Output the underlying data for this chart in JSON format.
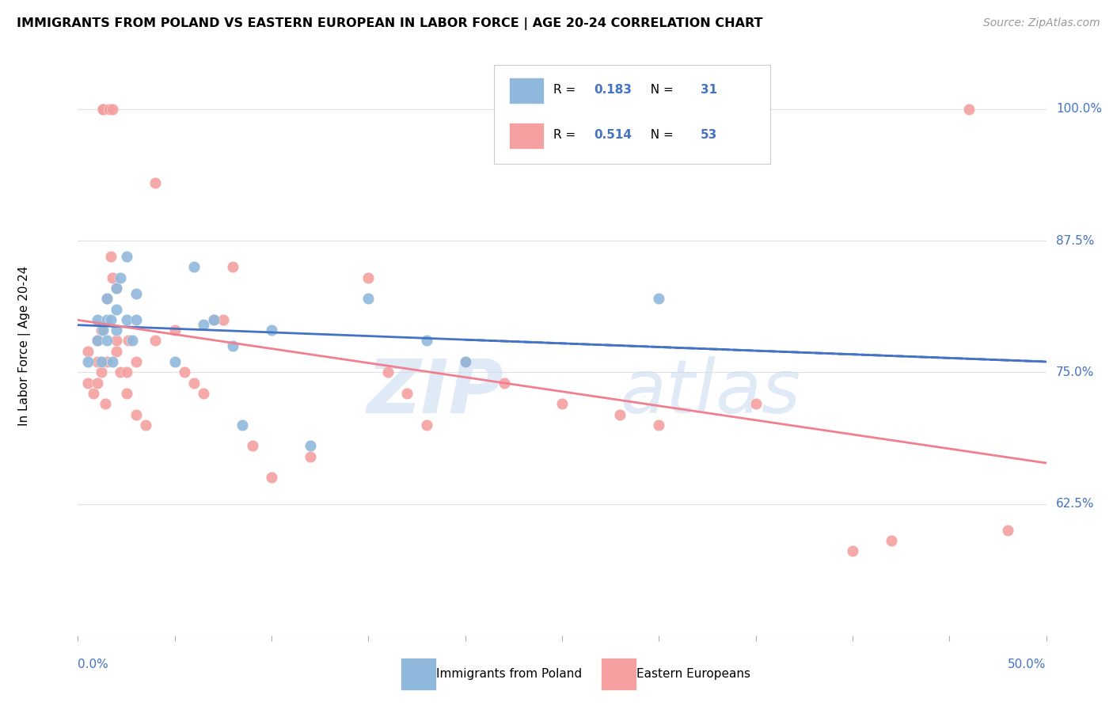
{
  "title": "IMMIGRANTS FROM POLAND VS EASTERN EUROPEAN IN LABOR FORCE | AGE 20-24 CORRELATION CHART",
  "source": "Source: ZipAtlas.com",
  "xmin": 0.0,
  "xmax": 0.5,
  "ymin": 0.5,
  "ymax": 1.05,
  "ylabel": "In Labor Force | Age 20-24",
  "yticks": [
    1.0,
    0.875,
    0.75,
    0.625
  ],
  "ytick_labels": [
    "100.0%",
    "87.5%",
    "75.0%",
    "62.5%"
  ],
  "color_blue": "#90b8dc",
  "color_pink": "#f4a0a0",
  "color_blue_line": "#4472c4",
  "color_pink_line": "#f08090",
  "r_blue": "0.183",
  "n_blue": "31",
  "r_pink": "0.514",
  "n_pink": "53",
  "legend_label_blue": "Immigrants from Poland",
  "legend_label_pink": "Eastern Europeans",
  "poland_x": [
    0.005,
    0.01,
    0.01,
    0.012,
    0.013,
    0.015,
    0.015,
    0.015,
    0.017,
    0.018,
    0.02,
    0.02,
    0.02,
    0.022,
    0.025,
    0.025,
    0.028,
    0.03,
    0.03,
    0.05,
    0.06,
    0.065,
    0.07,
    0.08,
    0.085,
    0.1,
    0.12,
    0.15,
    0.18,
    0.2,
    0.3
  ],
  "poland_y": [
    0.76,
    0.78,
    0.8,
    0.76,
    0.79,
    0.8,
    0.82,
    0.78,
    0.8,
    0.76,
    0.81,
    0.83,
    0.79,
    0.84,
    0.86,
    0.8,
    0.78,
    0.825,
    0.8,
    0.76,
    0.85,
    0.795,
    0.8,
    0.775,
    0.7,
    0.79,
    0.68,
    0.82,
    0.78,
    0.76,
    0.82
  ],
  "eastern_x": [
    0.005,
    0.005,
    0.008,
    0.01,
    0.01,
    0.01,
    0.012,
    0.012,
    0.013,
    0.013,
    0.014,
    0.015,
    0.015,
    0.016,
    0.017,
    0.018,
    0.018,
    0.02,
    0.02,
    0.02,
    0.022,
    0.025,
    0.025,
    0.026,
    0.03,
    0.03,
    0.035,
    0.04,
    0.04,
    0.05,
    0.055,
    0.06,
    0.065,
    0.07,
    0.075,
    0.08,
    0.09,
    0.1,
    0.12,
    0.15,
    0.16,
    0.17,
    0.18,
    0.2,
    0.22,
    0.25,
    0.28,
    0.3,
    0.35,
    0.4,
    0.42,
    0.46,
    0.48
  ],
  "eastern_y": [
    0.74,
    0.77,
    0.73,
    0.74,
    0.76,
    0.78,
    0.79,
    0.75,
    1.0,
    1.0,
    0.72,
    0.82,
    0.76,
    1.0,
    0.86,
    1.0,
    0.84,
    0.83,
    0.78,
    0.77,
    0.75,
    0.75,
    0.73,
    0.78,
    0.76,
    0.71,
    0.7,
    0.93,
    0.78,
    0.79,
    0.75,
    0.74,
    0.73,
    0.8,
    0.8,
    0.85,
    0.68,
    0.65,
    0.67,
    0.84,
    0.75,
    0.73,
    0.7,
    0.76,
    0.74,
    0.72,
    0.71,
    0.7,
    0.72,
    0.58,
    0.59,
    1.0,
    0.6
  ]
}
